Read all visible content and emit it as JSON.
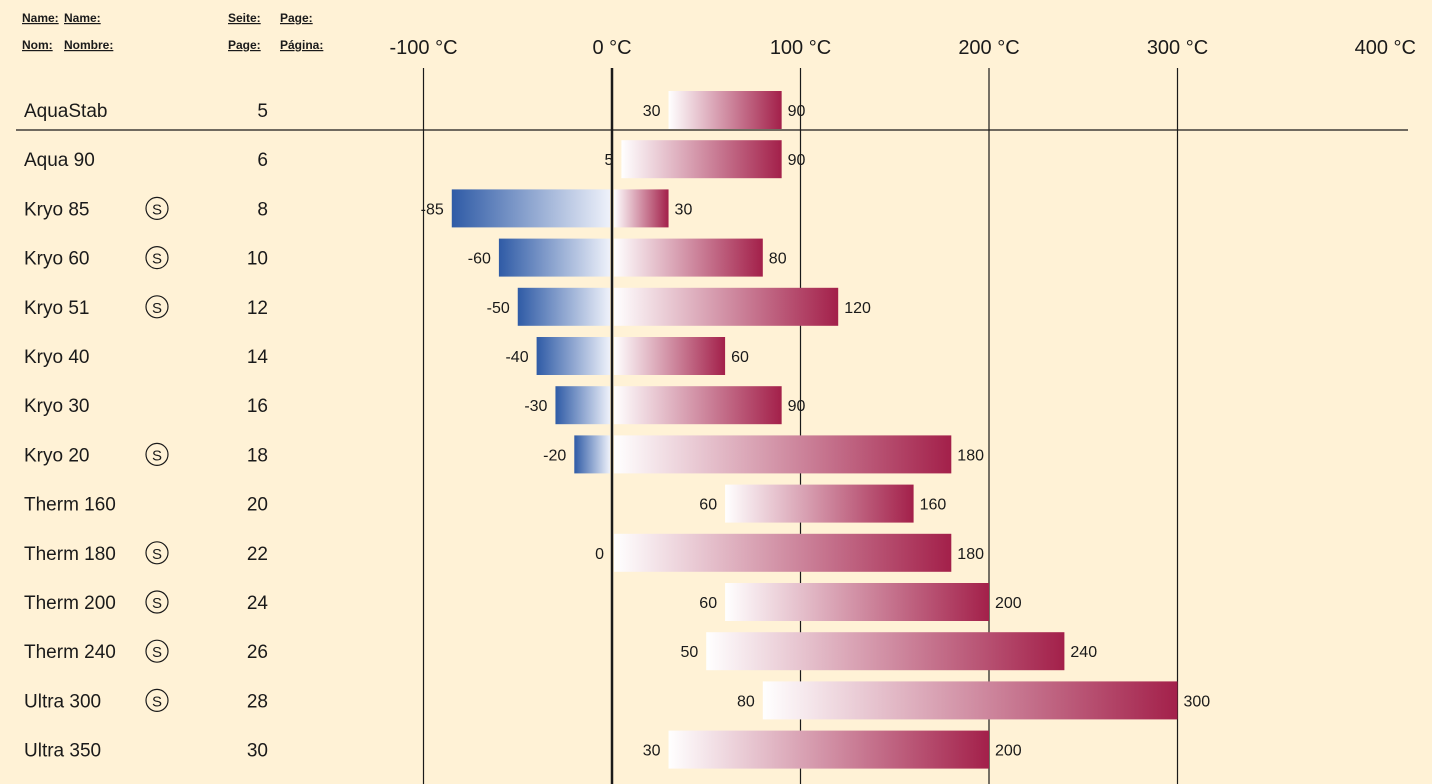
{
  "header": {
    "name_labels": [
      "Name:",
      "Name:"
    ],
    "nom_labels": [
      "Nom:",
      "Nombre:"
    ],
    "seite_labels": [
      "Seite:",
      "Page:"
    ],
    "page_labels": [
      "Page:",
      "Página:"
    ]
  },
  "colors": {
    "background": "#FFF2D6",
    "cold_bar": "#2F5BA6",
    "warm_bar": "#A3204A",
    "bar_light": "#FFFFFF"
  },
  "chart_data": {
    "type": "bar",
    "orientation": "horizontal-range",
    "x_ticks": [
      "-100 °C",
      "0 °C",
      "100 °C",
      "200 °C",
      "300 °C",
      "400 °C"
    ],
    "xlim": [
      -100,
      400
    ],
    "grid": true,
    "special_symbol": "S",
    "rows": [
      {
        "name": "AquaStab",
        "page": "5",
        "min": 30,
        "max": 90,
        "special": false
      },
      {
        "name": "Aqua 90",
        "page": "6",
        "min": 5,
        "max": 90,
        "special": false
      },
      {
        "name": "Kryo 85",
        "page": "8",
        "min": -85,
        "max": 30,
        "special": true
      },
      {
        "name": "Kryo 60",
        "page": "10",
        "min": -60,
        "max": 80,
        "special": true
      },
      {
        "name": "Kryo 51",
        "page": "12",
        "min": -50,
        "max": 120,
        "special": true
      },
      {
        "name": "Kryo 40",
        "page": "14",
        "min": -40,
        "max": 60,
        "special": false
      },
      {
        "name": "Kryo 30",
        "page": "16",
        "min": -30,
        "max": 90,
        "special": false
      },
      {
        "name": "Kryo 20",
        "page": "18",
        "min": -20,
        "max": 180,
        "special": true
      },
      {
        "name": "Therm 160",
        "page": "20",
        "min": 60,
        "max": 160,
        "special": false
      },
      {
        "name": "Therm 180",
        "page": "22",
        "min": 0,
        "max": 180,
        "special": true
      },
      {
        "name": "Therm 200",
        "page": "24",
        "min": 60,
        "max": 200,
        "special": true
      },
      {
        "name": "Therm 240",
        "page": "26",
        "min": 50,
        "max": 240,
        "special": true
      },
      {
        "name": "Ultra 300",
        "page": "28",
        "min": 80,
        "max": 300,
        "special": true
      },
      {
        "name": "Ultra 350",
        "page": "30",
        "min": 30,
        "max": 200,
        "special": false
      }
    ]
  }
}
